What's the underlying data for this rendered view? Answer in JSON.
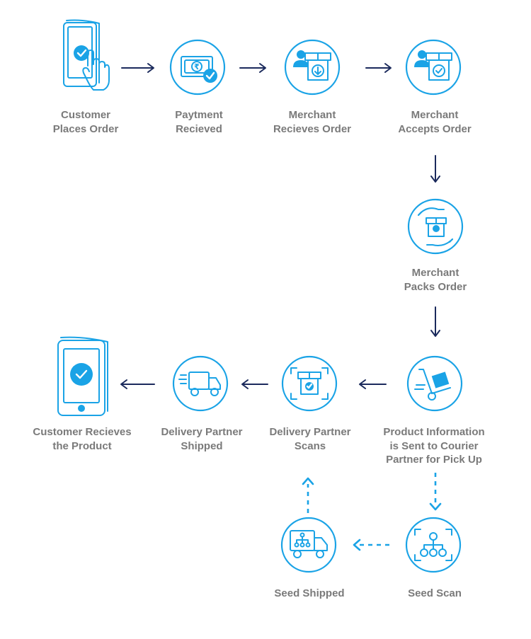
{
  "colors": {
    "accent": "#1aa3e6",
    "arrow_dark": "#1b2a5c",
    "label_text": "#7a7a7a",
    "background": "#ffffff"
  },
  "steps": [
    {
      "id": "customer-places-order",
      "label": "Customer\nPlaces Order",
      "icon": "phone-tap-check-icon"
    },
    {
      "id": "payment-received",
      "label": "Paytment\nRecieved",
      "icon": "rupee-payment-icon"
    },
    {
      "id": "merchant-receives-order",
      "label": "Merchant\nRecieves Order",
      "icon": "merchant-box-download-icon"
    },
    {
      "id": "merchant-accepts-order",
      "label": "Merchant\nAccepts Order",
      "icon": "merchant-box-check-icon"
    },
    {
      "id": "merchant-packs-order",
      "label": "Merchant\nPacks Order",
      "icon": "hands-package-icon"
    },
    {
      "id": "product-info-sent",
      "label": "Product Information\nis Sent to Courier\nPartner for Pick Up",
      "icon": "hand-truck-icon"
    },
    {
      "id": "delivery-partner-scans",
      "label": "Delivery Partner\nScans",
      "icon": "scan-box-icon"
    },
    {
      "id": "delivery-partner-shipped",
      "label": "Delivery Partner\nShipped",
      "icon": "delivery-truck-icon"
    },
    {
      "id": "customer-receives-product",
      "label": "Customer Recieves\nthe Product",
      "icon": "phone-check-icon"
    },
    {
      "id": "seed-scan",
      "label": "Seed Scan",
      "icon": "scan-network-icon"
    },
    {
      "id": "seed-shipped",
      "label": "Seed Shipped",
      "icon": "network-truck-icon"
    }
  ],
  "connections": [
    {
      "from": "customer-places-order",
      "to": "payment-received",
      "style": "solid"
    },
    {
      "from": "payment-received",
      "to": "merchant-receives-order",
      "style": "solid"
    },
    {
      "from": "merchant-receives-order",
      "to": "merchant-accepts-order",
      "style": "solid"
    },
    {
      "from": "merchant-accepts-order",
      "to": "merchant-packs-order",
      "style": "solid"
    },
    {
      "from": "merchant-packs-order",
      "to": "product-info-sent",
      "style": "solid"
    },
    {
      "from": "product-info-sent",
      "to": "delivery-partner-scans",
      "style": "solid"
    },
    {
      "from": "delivery-partner-scans",
      "to": "delivery-partner-shipped",
      "style": "solid"
    },
    {
      "from": "delivery-partner-shipped",
      "to": "customer-receives-product",
      "style": "solid"
    },
    {
      "from": "product-info-sent",
      "to": "seed-scan",
      "style": "dashed"
    },
    {
      "from": "seed-scan",
      "to": "seed-shipped",
      "style": "dashed"
    },
    {
      "from": "seed-shipped",
      "to": "delivery-partner-scans",
      "style": "dashed"
    }
  ]
}
